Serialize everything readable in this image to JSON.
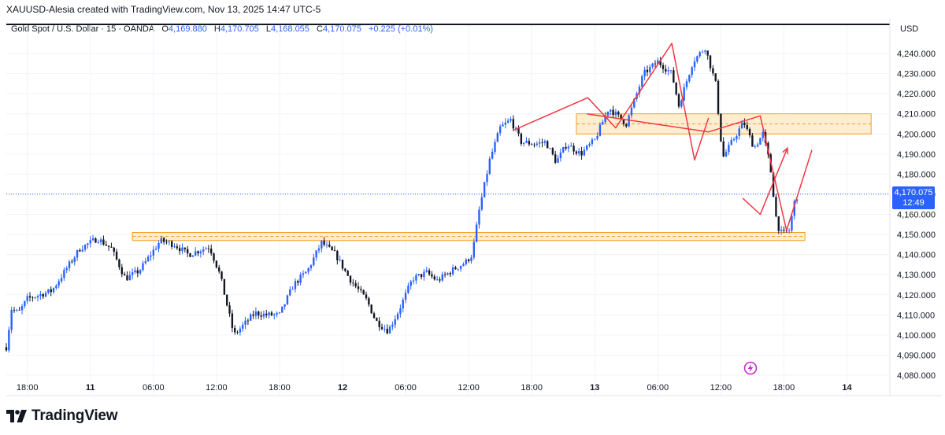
{
  "header": {
    "attribution": "XAUUSD-Alesia created with TradingView.com, Nov 13, 2025 14:47 UTC-5"
  },
  "legend": {
    "symbol": "Gold Spot / U.S. Dollar · 15 · OANDA",
    "open_label": "O",
    "open": "4,169.880",
    "high_label": "H",
    "high": "4,170.705",
    "low_label": "L",
    "low": "4,168.055",
    "close_label": "C",
    "close": "4,170.075",
    "change": "+0.225 (+0.01%)"
  },
  "currency": "USD",
  "price_tag": {
    "price": "4,170.075",
    "countdown": "12:49"
  },
  "brand": {
    "name": "TradingView",
    "logo_icon": "tradingview-logo-icon"
  },
  "colors": {
    "up": "#2962ff",
    "down": "#131722",
    "zone_fill": "#fce8c4",
    "zone_border": "#f59d22",
    "annotation": "#f23645"
  },
  "chart_data": {
    "type": "candlestick",
    "ylim": [
      4073,
      4250
    ],
    "xlim": [
      0,
      1400
    ],
    "x_unit": "minutes from 2025-11-10 16:00 UTC-5",
    "y_ticks": [
      4080,
      4090,
      4100,
      4110,
      4120,
      4130,
      4140,
      4150,
      4160,
      4170,
      4180,
      4190,
      4200,
      4210,
      4220,
      4230,
      4240
    ],
    "y_tick_labels": [
      "4,080.000",
      "4,090.000",
      "4,100.000",
      "4,110.000",
      "4,120.000",
      "4,130.000",
      "4,140.000",
      "4,150.000",
      "4,160.000",
      "4,170.000",
      "4,180.000",
      "4,190.000",
      "4,200.000",
      "4,210.000",
      "4,220.000",
      "4,230.000",
      "4,240.000"
    ],
    "x_ticks": [
      {
        "t": 120,
        "label": "18:00"
      },
      {
        "t": 480,
        "label": "11"
      },
      {
        "t": 840,
        "label": "06:00"
      },
      {
        "t": 1200,
        "label": "12:00"
      },
      {
        "t": 1560,
        "label": "18:00"
      },
      {
        "t": 1920,
        "label": "12"
      },
      {
        "t": 2280,
        "label": "06:00"
      },
      {
        "t": 2640,
        "label": "12:00"
      },
      {
        "t": 3000,
        "label": "18:00"
      },
      {
        "t": 3360,
        "label": "13"
      },
      {
        "t": 3720,
        "label": "06:00"
      },
      {
        "t": 4080,
        "label": "12:00"
      },
      {
        "t": 4440,
        "label": "18:00"
      },
      {
        "t": 4800,
        "label": "14"
      }
    ],
    "last_price": 4170.075,
    "zones": [
      {
        "t_start": 3255,
        "t_end": 4938,
        "high": 4210,
        "low": 4200,
        "mid": 4205
      },
      {
        "t_start": 720,
        "t_end": 4560,
        "high": 4151,
        "low": 4147,
        "mid": 4149
      }
    ],
    "zigzag_paths": [
      [
        [
          3315,
          4210
        ],
        [
          4010,
          4201
        ],
        [
          4305,
          4209
        ],
        [
          4455,
          4152
        ],
        [
          4600,
          4192
        ]
      ],
      [
        [
          2900,
          4202
        ],
        [
          3320,
          4218
        ],
        [
          3480,
          4203
        ],
        [
          3800,
          4245
        ],
        [
          3930,
          4187
        ],
        [
          4010,
          4208
        ]
      ]
    ],
    "zigzag_path_1": [
      [
        4205,
        4168
      ],
      [
        4305,
        4160
      ],
      [
        4460,
        4193
      ]
    ],
    "anchors": [
      [
        0,
        4094
      ],
      [
        30,
        4113
      ],
      [
        70,
        4111
      ],
      [
        120,
        4118
      ],
      [
        260,
        4122
      ],
      [
        420,
        4143
      ],
      [
        520,
        4148
      ],
      [
        600,
        4143
      ],
      [
        680,
        4128
      ],
      [
        760,
        4132
      ],
      [
        880,
        4147
      ],
      [
        960,
        4145
      ],
      [
        1040,
        4140
      ],
      [
        1160,
        4144
      ],
      [
        1220,
        4130
      ],
      [
        1300,
        4100
      ],
      [
        1420,
        4111
      ],
      [
        1480,
        4110
      ],
      [
        1560,
        4110
      ],
      [
        1640,
        4125
      ],
      [
        1720,
        4132
      ],
      [
        1800,
        4146
      ],
      [
        1880,
        4140
      ],
      [
        1960,
        4128
      ],
      [
        2060,
        4117
      ],
      [
        2110,
        4107
      ],
      [
        2180,
        4102
      ],
      [
        2240,
        4112
      ],
      [
        2320,
        4128
      ],
      [
        2400,
        4131
      ],
      [
        2460,
        4127
      ],
      [
        2560,
        4133
      ],
      [
        2620,
        4136
      ],
      [
        2660,
        4140
      ],
      [
        2700,
        4162
      ],
      [
        2760,
        4187
      ],
      [
        2820,
        4203
      ],
      [
        2880,
        4207
      ],
      [
        2940,
        4196
      ],
      [
        3020,
        4195
      ],
      [
        3080,
        4196
      ],
      [
        3140,
        4186
      ],
      [
        3200,
        4195
      ],
      [
        3280,
        4190
      ],
      [
        3360,
        4197
      ],
      [
        3440,
        4213
      ],
      [
        3540,
        4205
      ],
      [
        3640,
        4230
      ],
      [
        3720,
        4236
      ],
      [
        3800,
        4230
      ],
      [
        3840,
        4214
      ],
      [
        3920,
        4236
      ],
      [
        3990,
        4243
      ],
      [
        4050,
        4225
      ],
      [
        4090,
        4188
      ],
      [
        4150,
        4197
      ],
      [
        4210,
        4206
      ],
      [
        4270,
        4193
      ],
      [
        4320,
        4200
      ],
      [
        4360,
        4185
      ],
      [
        4400,
        4155
      ],
      [
        4430,
        4150
      ],
      [
        4470,
        4152
      ],
      [
        4500,
        4166
      ],
      [
        4520,
        4170.075
      ]
    ]
  }
}
